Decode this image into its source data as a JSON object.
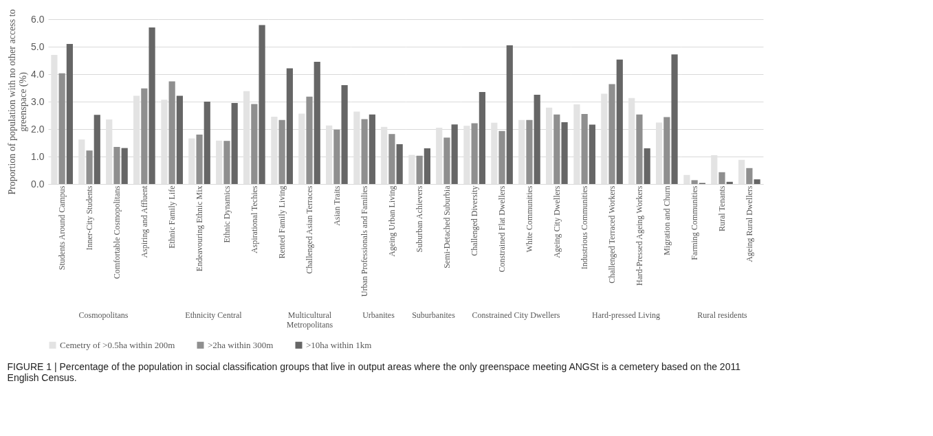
{
  "chart_data": [
    {
      "type": "bar",
      "xlabel": "Cosmopolitans",
      "ylabel": "Proportion of population with no other access to greenspace (%)",
      "categories": [
        "Students Around Campus",
        "Inner-City Students",
        "Comfortable Cosmopolitans",
        "Aspiring and Affluent"
      ],
      "ylim": [
        0,
        6
      ],
      "yticks": [
        {
          "value": 0,
          "label": "0.0"
        },
        {
          "value": 1,
          "label": "1.0"
        },
        {
          "value": 2,
          "label": "2.0"
        },
        {
          "value": 3,
          "label": "3.0"
        },
        {
          "value": 4,
          "label": "4.0"
        },
        {
          "value": 5,
          "label": "5.0"
        },
        {
          "value": 6,
          "label": "6.0"
        }
      ],
      "grid": "y",
      "legend": "bottom",
      "annotations": [
        "FIGURE 1 | Percentage of the population in social classification groups that live in output areas where the only greenspace meeting ANGSt is a cemetery based on the 2011 English Census."
      ],
      "series": [
        {
          "name": "Cemetry of >0.5ha within 200m",
          "color": "#e3e3e3",
          "values": [
            4.7,
            1.62,
            2.35,
            3.21
          ]
        },
        {
          "name": ">2ha within 300m",
          "color": "#8f8f8f",
          "values": [
            4.03,
            1.22,
            1.35,
            3.48
          ]
        },
        {
          "name": ">10ha within 1km",
          "color": "#666666",
          "values": [
            5.1,
            2.52,
            1.31,
            5.7
          ]
        }
      ]
    },
    {
      "type": "bar",
      "xlabel": "Ethnicity Central",
      "categories": [
        "Ethnic Family Life",
        "Endeavouring Ethnic Mix",
        "Ethnic Dynamics",
        "Aspirational Techies"
      ],
      "ylim": [
        0,
        6
      ],
      "yticks": [
        0,
        1,
        2,
        3,
        4,
        5,
        6
      ],
      "grid": "y",
      "tick_labels": "x",
      "series": [
        {
          "name": "Cemetry of >0.5ha within 200m",
          "color": "#e3e3e3",
          "values": [
            3.07,
            1.66,
            1.58,
            3.38
          ]
        },
        {
          "name": ">2ha within 300m",
          "color": "#8f8f8f",
          "values": [
            3.74,
            1.8,
            1.57,
            2.91
          ]
        },
        {
          "name": ">10ha within 1km",
          "color": "#666666",
          "values": [
            3.21,
            3.0,
            2.95,
            5.79
          ]
        }
      ]
    },
    {
      "type": "bar",
      "xlabel": "Multicultural Metropolitans",
      "categories": [
        "Rented Family Living",
        "Challenged Asian Terraces",
        "Asian Traits"
      ],
      "ylim": [
        0,
        6
      ],
      "yticks": [
        0,
        1,
        2,
        3,
        4,
        5,
        6
      ],
      "grid": "y",
      "tick_labels": "x",
      "series": [
        {
          "name": "Cemetry of >0.5ha within 200m",
          "color": "#e3e3e3",
          "values": [
            2.45,
            2.56,
            2.13
          ]
        },
        {
          "name": ">2ha within 300m",
          "color": "#8f8f8f",
          "values": [
            2.33,
            3.18,
            1.98
          ]
        },
        {
          "name": ">10ha within 1km",
          "color": "#666666",
          "values": [
            4.21,
            4.45,
            3.6
          ]
        }
      ]
    },
    {
      "type": "bar",
      "xlabel": "Urbanites",
      "categories": [
        "Urban Professionals and Families",
        "Ageing Urban Living"
      ],
      "ylim": [
        0,
        6
      ],
      "yticks": [
        0,
        1,
        2,
        3,
        4,
        5,
        6
      ],
      "grid": "y",
      "tick_labels": "x",
      "series": [
        {
          "name": "Cemetry of >0.5ha within 200m",
          "color": "#e3e3e3",
          "values": [
            2.64,
            2.08
          ]
        },
        {
          "name": ">2ha within 300m",
          "color": "#8f8f8f",
          "values": [
            2.36,
            1.82
          ]
        },
        {
          "name": ">10ha within 1km",
          "color": "#666666",
          "values": [
            2.53,
            1.45
          ]
        }
      ]
    },
    {
      "type": "bar",
      "xlabel": "Suburbanites",
      "categories": [
        "Suburban Achievers",
        "Semi-Detached Suburbia"
      ],
      "ylim": [
        0,
        6
      ],
      "yticks": [
        0,
        1,
        2,
        3,
        4,
        5,
        6
      ],
      "grid": "y",
      "tick_labels": "x",
      "series": [
        {
          "name": "Cemetry of >0.5ha within 200m",
          "color": "#e3e3e3",
          "values": [
            1.06,
            2.05
          ]
        },
        {
          "name": ">2ha within 300m",
          "color": "#8f8f8f",
          "values": [
            1.03,
            1.69
          ]
        },
        {
          "name": ">10ha within 1km",
          "color": "#666666",
          "values": [
            1.3,
            2.17
          ]
        }
      ]
    },
    {
      "type": "bar",
      "xlabel": "Constrained City Dwellers",
      "categories": [
        "Challenged Diversity",
        "Constrained Flat Dwellers",
        "White Communities",
        "Ageing City Dwellers"
      ],
      "ylim": [
        0,
        6
      ],
      "yticks": [
        0,
        1,
        2,
        3,
        4,
        5,
        6
      ],
      "grid": "y",
      "tick_labels": "x",
      "series": [
        {
          "name": "Cemetry of >0.5ha within 200m",
          "color": "#e3e3e3",
          "values": [
            2.12,
            2.23,
            2.33,
            2.78
          ]
        },
        {
          "name": ">2ha within 300m",
          "color": "#8f8f8f",
          "values": [
            2.21,
            1.93,
            2.33,
            2.53
          ]
        },
        {
          "name": ">10ha within 1km",
          "color": "#666666",
          "values": [
            3.35,
            5.05,
            3.25,
            2.25
          ]
        }
      ]
    },
    {
      "type": "bar",
      "xlabel": "Hard-pressed Living",
      "categories": [
        "Industrious Communities",
        "Challenged Terraced Workers",
        "Hard-Pressed Ageing Workers",
        "Migration and Churn"
      ],
      "ylim": [
        0,
        6
      ],
      "yticks": [
        0,
        1,
        2,
        3,
        4,
        5,
        6
      ],
      "grid": "y",
      "tick_labels": "x",
      "series": [
        {
          "name": "Cemetry of >0.5ha within 200m",
          "color": "#e3e3e3",
          "values": [
            2.9,
            3.29,
            3.13,
            2.24
          ]
        },
        {
          "name": ">2ha within 300m",
          "color": "#8f8f8f",
          "values": [
            2.55,
            3.64,
            2.53,
            2.44
          ]
        },
        {
          "name": ">10ha within 1km",
          "color": "#666666",
          "values": [
            2.16,
            4.53,
            1.3,
            4.72
          ]
        }
      ]
    },
    {
      "type": "bar",
      "xlabel": "Rural residents",
      "categories": [
        "Farming Communities",
        "Rural Tenants",
        "Ageing Rural Dwellers"
      ],
      "ylim": [
        0,
        6
      ],
      "yticks": [
        0,
        1,
        2,
        3,
        4,
        5,
        6
      ],
      "grid": "y",
      "tick_labels": "x",
      "series": [
        {
          "name": "Cemetry of >0.5ha within 200m",
          "color": "#e3e3e3",
          "values": [
            0.33,
            1.05,
            0.88
          ]
        },
        {
          "name": ">2ha within 300m",
          "color": "#8f8f8f",
          "values": [
            0.14,
            0.43,
            0.58
          ]
        },
        {
          "name": ">10ha within 1km",
          "color": "#666666",
          "values": [
            0.04,
            0.08,
            0.17
          ]
        }
      ]
    }
  ]
}
